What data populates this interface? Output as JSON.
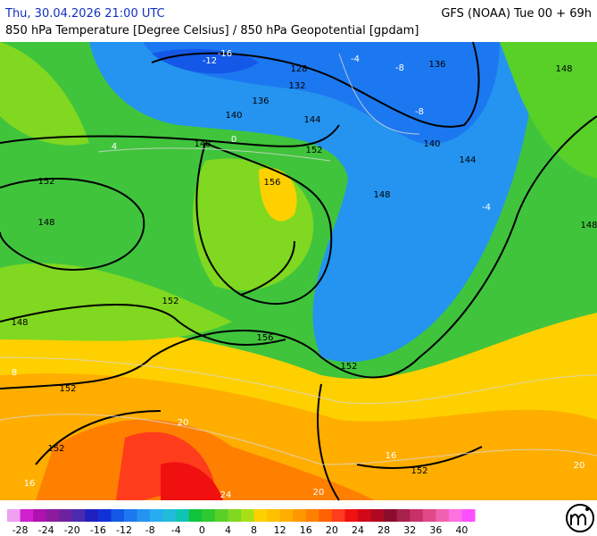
{
  "header": {
    "time": "Thu, 30.04.2026 21:00 UTC",
    "model": "GFS (NOAA) Tue 00 + 69h",
    "subtitle": "850 hPa Temperature [Degree Celsius] / 850 hPa Geopotential [gpdam]"
  },
  "geopotential_labels": [
    128,
    132,
    136,
    136,
    140,
    144,
    140,
    144,
    148,
    152,
    148,
    152,
    148,
    156,
    148,
    148,
    152,
    148,
    156,
    152,
    152,
    152,
    152
  ],
  "temperature_labels": [
    -16,
    -12,
    -8,
    -4,
    -8,
    -4,
    0,
    4,
    8,
    16,
    20,
    20,
    24,
    16,
    20
  ],
  "colorbar": {
    "colors": [
      "#f0a0f0",
      "#d020d0",
      "#b010b0",
      "#8c1c9c",
      "#6e22a0",
      "#4a2ab0",
      "#2020c0",
      "#1030d8",
      "#1458e8",
      "#1c78f0",
      "#2494f0",
      "#28acf0",
      "#20bcd8",
      "#10c4b4",
      "#10c43c",
      "#30c830",
      "#58d028",
      "#80d820",
      "#a8e018",
      "#ffd000",
      "#ffc000",
      "#ffae00",
      "#ff9800",
      "#ff8000",
      "#ff6000",
      "#ff3c1c",
      "#f01010",
      "#d00818",
      "#b00820",
      "#8c0c2c",
      "#a8204c",
      "#c83068",
      "#e04888",
      "#f060b0",
      "#ff70e0",
      "#ff50ff"
    ],
    "labels": [
      -28,
      -24,
      -20,
      -16,
      -12,
      -8,
      -4,
      0,
      4,
      8,
      12,
      16,
      20,
      24,
      28,
      32,
      36,
      40
    ]
  }
}
